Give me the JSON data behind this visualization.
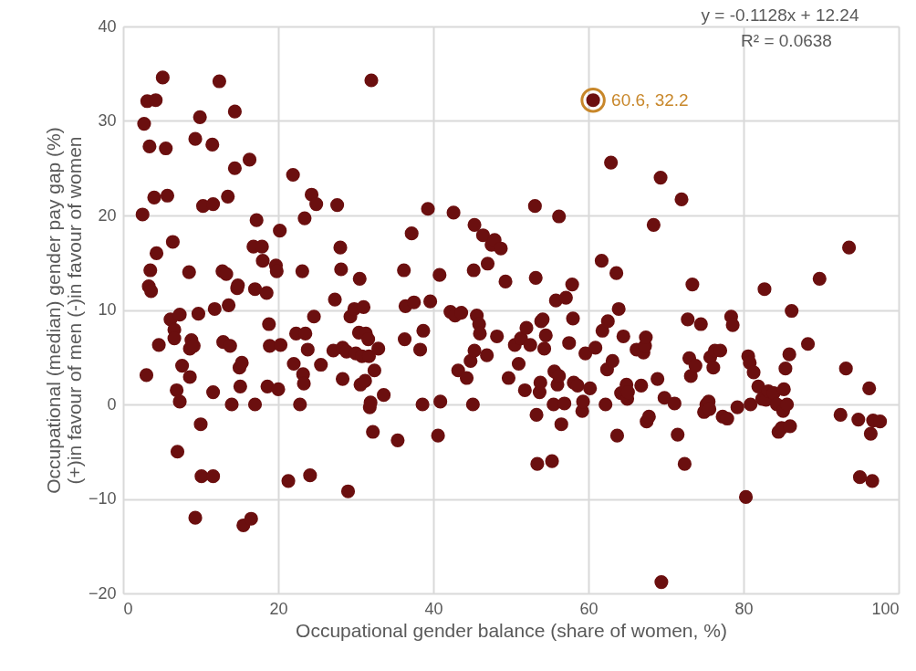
{
  "chart_data": {
    "type": "scatter",
    "xlabel": "Occupational gender balance (share of women, %)",
    "ylabel": "Occupational (median) gender pay gap (%)\n(+)in favour of men  (-)in favour of women",
    "xlim": [
      0,
      100
    ],
    "xticks": [
      0,
      20,
      40,
      60,
      80,
      100
    ],
    "ylim": [
      -20,
      40
    ],
    "yticks": [
      -20,
      -10,
      0,
      10,
      20,
      30,
      40
    ],
    "grid": true,
    "marker": "circle",
    "annotations": [
      "y = -0.1128x + 12.24",
      "R² = 0.0638",
      {
        "text": "60.6, 32.2",
        "x": 60.6,
        "y": 32.2
      }
    ],
    "series": [
      {
        "color": "#6b0f0f",
        "x": [
          2.5,
          2.7,
          3.0,
          3.1,
          3.3,
          3.4,
          3.5,
          3.6,
          4.0,
          4.2,
          4.3,
          4.6,
          5.1,
          5.5,
          5.7,
          6.1,
          6.4,
          6.6,
          6.6,
          6.9,
          7.0,
          7.3,
          7.3,
          7.6,
          8.5,
          8.6,
          8.6,
          8.8,
          9.1,
          9.3,
          9.3,
          9.7,
          9.9,
          10.0,
          10.1,
          10.3,
          11.5,
          11.6,
          11.6,
          11.6,
          11.8,
          12.4,
          12.8,
          12.9,
          13.3,
          13.5,
          13.6,
          13.8,
          14.0,
          14.4,
          14.4,
          14.7,
          14.8,
          15.0,
          15.1,
          15.3,
          15.5,
          16.3,
          16.5,
          16.8,
          17.0,
          17.0,
          17.2,
          17.9,
          18.0,
          18.5,
          18.6,
          18.8,
          18.9,
          19.7,
          19.8,
          20.0,
          20.2,
          20.3,
          21.3,
          21.9,
          22.0,
          22.3,
          22.8,
          23.1,
          23.2,
          23.3,
          23.4,
          23.5,
          23.8,
          24.1,
          24.3,
          24.6,
          24.9,
          25.5,
          27.1,
          27.3,
          27.6,
          28.0,
          28.1,
          28.3,
          28.3,
          28.8,
          29.0,
          29.3,
          29.8,
          30.0,
          30.4,
          30.5,
          30.6,
          30.8,
          31.0,
          31.2,
          31.3,
          31.6,
          31.7,
          31.8,
          31.9,
          32.0,
          32.2,
          32.4,
          32.9,
          33.6,
          35.4,
          36.2,
          36.3,
          36.4,
          37.2,
          37.5,
          38.3,
          38.6,
          38.7,
          39.3,
          39.6,
          40.8,
          40.6,
          40.9,
          42.2,
          42.6,
          42.8,
          43.2,
          43.6,
          44.3,
          44.8,
          45.1,
          45.2,
          45.3,
          45.3,
          45.6,
          45.9,
          46.0,
          46.4,
          46.9,
          47.0,
          47.5,
          47.9,
          48.2,
          48.7,
          49.3,
          49.7,
          50.5,
          51.0,
          51.3,
          51.8,
          52.0,
          52.5,
          53.1,
          53.2,
          53.3,
          53.4,
          53.7,
          53.8,
          53.9,
          54.1,
          54.3,
          54.5,
          55.3,
          55.5,
          55.6,
          55.8,
          56.0,
          56.2,
          56.2,
          56.5,
          56.9,
          57.1,
          57.5,
          57.9,
          58.0,
          58.1,
          58.6,
          59.2,
          59.3,
          59.6,
          60.2,
          60.6,
          60.9,
          61.7,
          61.8,
          62.2,
          62.4,
          62.5,
          62.9,
          63.1,
          63.6,
          63.7,
          63.9,
          64.2,
          64.5,
          64.9,
          65.0,
          65.1,
          66.2,
          66.8,
          67.1,
          67.3,
          67.4,
          67.5,
          67.8,
          68.4,
          68.9,
          69.3,
          69.4,
          69.8,
          71.1,
          71.5,
          72.0,
          72.4,
          72.8,
          73.0,
          73.2,
          73.4,
          73.8,
          74.5,
          74.9,
          75.2,
          75.5,
          75.6,
          75.7,
          76.1,
          76.3,
          77.0,
          77.3,
          77.9,
          78.4,
          78.6,
          79.2,
          80.3,
          80.6,
          80.8,
          80.9,
          81.3,
          81.9,
          82.4,
          82.7,
          82.9,
          83.2,
          83.9,
          84.3,
          84.5,
          84.9,
          85.1,
          85.2,
          85.4,
          85.6,
          85.9,
          86.0,
          86.2,
          88.3,
          89.8,
          92.5,
          93.2,
          93.6,
          94.8,
          95.0,
          96.2,
          96.4,
          96.6,
          96.7,
          97.6
        ],
        "values": [
          20.1,
          29.7,
          3.1,
          32.1,
          12.5,
          27.3,
          14.2,
          12.0,
          21.9,
          32.2,
          16.0,
          6.3,
          34.6,
          27.1,
          22.1,
          9.0,
          17.2,
          7.9,
          7.0,
          1.5,
          -5.0,
          9.5,
          0.3,
          4.1,
          14.0,
          5.9,
          2.9,
          6.8,
          6.2,
          28.1,
          -12.0,
          9.6,
          30.4,
          -2.1,
          -7.6,
          21.0,
          27.5,
          21.2,
          -7.6,
          1.3,
          10.1,
          34.2,
          14.1,
          6.6,
          13.8,
          22.0,
          10.5,
          6.2,
          0.0,
          25.0,
          31.0,
          12.3,
          12.6,
          3.9,
          1.9,
          4.4,
          -12.8,
          25.9,
          -12.1,
          16.7,
          12.2,
          0.0,
          19.5,
          16.7,
          15.2,
          11.8,
          1.9,
          8.5,
          6.2,
          14.7,
          14.1,
          1.6,
          18.4,
          6.3,
          -8.1,
          24.3,
          4.3,
          7.5,
          0.0,
          14.1,
          3.2,
          2.2,
          19.7,
          7.5,
          5.8,
          -7.5,
          22.2,
          9.3,
          21.2,
          4.2,
          5.7,
          11.1,
          21.1,
          16.6,
          14.3,
          6.0,
          2.7,
          5.6,
          -9.2,
          9.3,
          10.1,
          5.4,
          7.6,
          13.3,
          2.1,
          5.1,
          10.3,
          2.5,
          7.5,
          6.9,
          5.1,
          -0.3,
          0.2,
          34.3,
          -2.9,
          3.6,
          5.9,
          1.0,
          -3.8,
          14.2,
          6.9,
          10.4,
          18.1,
          10.8,
          5.8,
          0.0,
          7.8,
          20.7,
          10.9,
          13.7,
          -3.3,
          0.3,
          9.8,
          20.3,
          9.4,
          3.6,
          9.7,
          2.8,
          4.6,
          0.0,
          14.2,
          19.0,
          5.7,
          9.4,
          8.5,
          7.5,
          17.9,
          5.2,
          14.9,
          16.9,
          17.4,
          7.2,
          16.5,
          13.0,
          2.8,
          6.3,
          4.3,
          7.0,
          1.5,
          8.1,
          6.3,
          21.0,
          13.4,
          -1.1,
          -6.3,
          1.3,
          2.3,
          8.8,
          9.0,
          5.9,
          7.3,
          -6.0,
          0.0,
          3.5,
          11.0,
          2.1,
          19.9,
          3.0,
          -2.1,
          0.1,
          11.3,
          6.5,
          12.7,
          9.1,
          2.3,
          2.0,
          -0.7,
          0.3,
          5.4,
          1.7,
          32.2,
          6.0,
          15.2,
          7.8,
          0.0,
          3.7,
          8.8,
          25.6,
          4.6,
          13.9,
          -3.3,
          10.1,
          1.2,
          7.2,
          2.1,
          0.6,
          1.3,
          5.8,
          2.0,
          5.5,
          6.2,
          7.1,
          -1.8,
          -1.3,
          19.0,
          2.7,
          24.0,
          -18.8,
          0.7,
          0.1,
          -3.2,
          21.7,
          -6.3,
          9.0,
          4.9,
          3.0,
          12.7,
          4.1,
          8.5,
          -0.8,
          0.0,
          0.3,
          -0.5,
          5.0,
          3.9,
          5.7,
          5.7,
          -1.3,
          -1.5,
          9.3,
          8.4,
          -0.3,
          -9.8,
          5.1,
          4.4,
          0.0,
          3.4,
          1.9,
          0.6,
          12.2,
          0.5,
          1.4,
          1.2,
          0.0,
          -2.9,
          -2.5,
          -0.7,
          1.6,
          3.8,
          0.0,
          5.3,
          -2.3,
          9.9,
          6.4,
          13.3,
          -1.1,
          3.8,
          16.6,
          -1.6,
          -7.7,
          1.7,
          -3.1,
          -8.1,
          -1.7,
          -1.8
        ]
      }
    ]
  }
}
